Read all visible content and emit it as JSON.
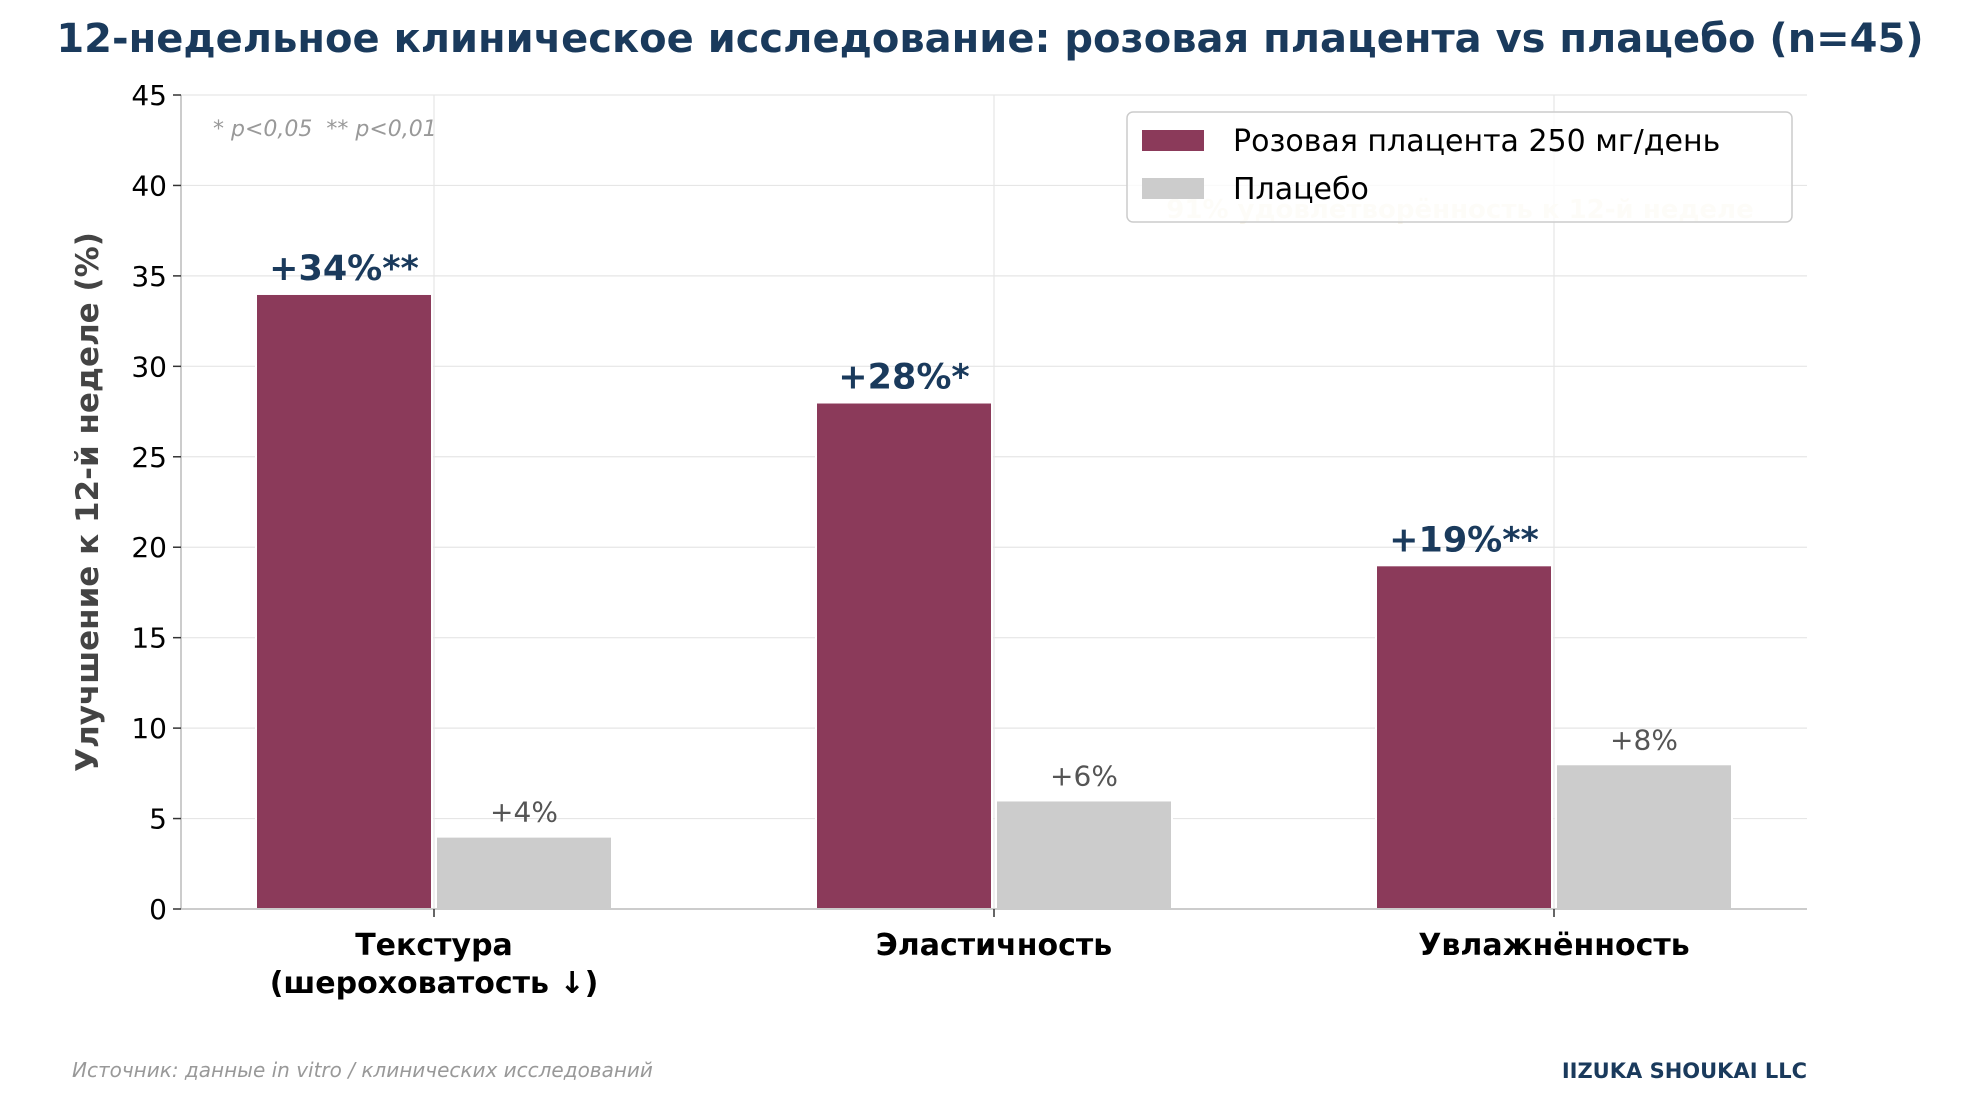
{
  "chart_data": {
    "type": "bar",
    "title": "12-недельное клиническое исследование: розовая плацента vs плацебо (n=45)",
    "ylabel": "Улучшение к 12-й неделе (%)",
    "xlabel": "",
    "ylim": [
      0,
      45
    ],
    "yticks": [
      0,
      5,
      10,
      15,
      20,
      25,
      30,
      35,
      40,
      45
    ],
    "grid": true,
    "legend_position": "top-right",
    "categories": [
      [
        "Текстура",
        "(шероховатость ↓)"
      ],
      [
        "Эластичность"
      ],
      [
        "Увлажнённость"
      ]
    ],
    "series": [
      {
        "name": "Розовая плацента 250 мг/день",
        "color": "#8b3a5a",
        "values": [
          34,
          28,
          19
        ],
        "labels": [
          "+34%**",
          "+28%*",
          "+19%**"
        ]
      },
      {
        "name": "Плацебо",
        "color": "#cccccc",
        "values": [
          4,
          6,
          8
        ],
        "labels": [
          "+4%",
          "+6%",
          "+8%"
        ]
      }
    ],
    "significance_note": "* p<0,05  ** p<0,01",
    "annotation": "91% удовлетворённость к 12-й неделе"
  },
  "footer": {
    "source": "Источник: данные in vitro / клинических исследований",
    "brand": "IIZUKA SHOUKAI LLC"
  }
}
